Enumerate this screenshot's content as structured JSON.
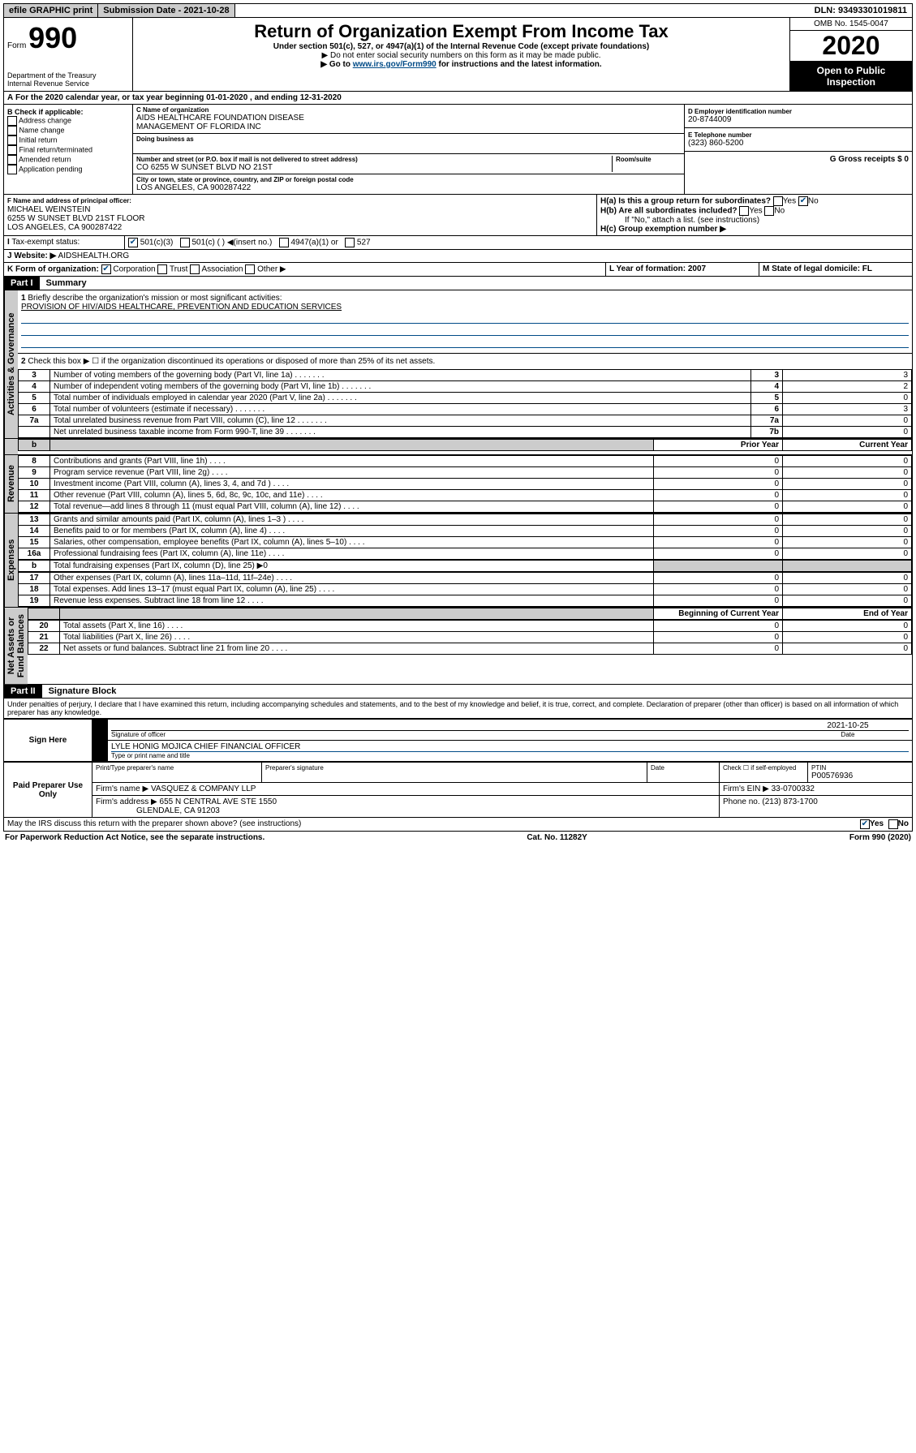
{
  "top": {
    "efile": "efile GRAPHIC print",
    "sub_label": "Submission Date - 2021-10-28",
    "dln": "DLN: 93493301019811"
  },
  "header": {
    "form_word": "Form",
    "form_num": "990",
    "dept": "Department of the Treasury\nInternal Revenue Service",
    "title": "Return of Organization Exempt From Income Tax",
    "sub1": "Under section 501(c), 527, or 4947(a)(1) of the Internal Revenue Code (except private foundations)",
    "sub2": "▶ Do not enter social security numbers on this form as it may be made public.",
    "sub3_pre": "▶ Go to ",
    "sub3_link": "www.irs.gov/Form990",
    "sub3_post": " for instructions and the latest information.",
    "omb": "OMB No. 1545-0047",
    "year": "2020",
    "insp1": "Open to Public",
    "insp2": "Inspection"
  },
  "a": {
    "text": "For the 2020 calendar year, or tax year beginning 01-01-2020    , and ending 12-31-2020"
  },
  "b": {
    "title": "B Check if applicable:",
    "opts": [
      "Address change",
      "Name change",
      "Initial return",
      "Final return/terminated",
      "Amended return",
      "Application pending"
    ]
  },
  "c": {
    "label": "C Name of organization",
    "name": "AIDS HEALTHCARE FOUNDATION DISEASE\nMANAGEMENT OF FLORIDA INC",
    "dba_label": "Doing business as",
    "addr_label": "Number and street (or P.O. box if mail is not delivered to street address)",
    "room": "Room/suite",
    "addr": "CO 6255 W SUNSET BLVD NO 21ST",
    "city_label": "City or town, state or province, country, and ZIP or foreign postal code",
    "city": "LOS ANGELES, CA  900287422"
  },
  "d": {
    "label": "D Employer identification number",
    "val": "20-8744009"
  },
  "e": {
    "label": "E Telephone number",
    "val": "(323) 860-5200"
  },
  "g": {
    "label": "G Gross receipts $ 0"
  },
  "f": {
    "label": "F  Name and address of principal officer:",
    "name": "MICHAEL WEINSTEIN",
    "addr1": "6255 W SUNSET BLVD 21ST FLOOR",
    "addr2": "LOS ANGELES, CA  900287422"
  },
  "h": {
    "a": "H(a)  Is this a group return for subordinates?",
    "b": "H(b)  Are all subordinates included?",
    "note": "If \"No,\" attach a list. (see instructions)",
    "c": "H(c)  Group exemption number ▶"
  },
  "i": {
    "label": "Tax-exempt status:",
    "o1": "501(c)(3)",
    "o2": "501(c) (  ) ◀(insert no.)",
    "o3": "4947(a)(1) or",
    "o4": "527"
  },
  "j": {
    "label": "Website: ▶",
    "val": "AIDSHEALTH.ORG"
  },
  "k": {
    "label": "K Form of organization:",
    "o1": "Corporation",
    "o2": "Trust",
    "o3": "Association",
    "o4": "Other ▶"
  },
  "l": {
    "label": "L Year of formation: 2007"
  },
  "m": {
    "label": "M State of legal domicile: FL"
  },
  "parts": {
    "p1": "Part I",
    "p1t": "Summary",
    "p2": "Part II",
    "p2t": "Signature Block"
  },
  "vtabs": {
    "gov": "Activities & Governance",
    "rev": "Revenue",
    "exp": "Expenses",
    "net": "Net Assets or\nFund Balances"
  },
  "summary": {
    "l1": "Briefly describe the organization's mission or most significant activities:",
    "l1v": "PROVISION OF HIV/AIDS HEALTHCARE, PREVENTION AND EDUCATION SERVICES",
    "l2": "Check this box ▶ ☐  if the organization discontinued its operations or disposed of more than 25% of its net assets.",
    "lines": [
      {
        "n": "3",
        "d": "Number of voting members of the governing body (Part VI, line 1a)",
        "r": "3",
        "v": "3"
      },
      {
        "n": "4",
        "d": "Number of independent voting members of the governing body (Part VI, line 1b)",
        "r": "4",
        "v": "2"
      },
      {
        "n": "5",
        "d": "Total number of individuals employed in calendar year 2020 (Part V, line 2a)",
        "r": "5",
        "v": "0"
      },
      {
        "n": "6",
        "d": "Total number of volunteers (estimate if necessary)",
        "r": "6",
        "v": "3"
      },
      {
        "n": "7a",
        "d": "Total unrelated business revenue from Part VIII, column (C), line 12",
        "r": "7a",
        "v": "0"
      },
      {
        "n": "",
        "d": "Net unrelated business taxable income from Form 990-T, line 39",
        "r": "7b",
        "v": "0"
      }
    ],
    "col_prior": "Prior Year",
    "col_curr": "Current Year",
    "rev": [
      {
        "n": "8",
        "d": "Contributions and grants (Part VIII, line 1h)",
        "p": "0",
        "c": "0"
      },
      {
        "n": "9",
        "d": "Program service revenue (Part VIII, line 2g)",
        "p": "0",
        "c": "0"
      },
      {
        "n": "10",
        "d": "Investment income (Part VIII, column (A), lines 3, 4, and 7d )",
        "p": "0",
        "c": "0"
      },
      {
        "n": "11",
        "d": "Other revenue (Part VIII, column (A), lines 5, 6d, 8c, 9c, 10c, and 11e)",
        "p": "0",
        "c": "0"
      },
      {
        "n": "12",
        "d": "Total revenue—add lines 8 through 11 (must equal Part VIII, column (A), line 12)",
        "p": "0",
        "c": "0"
      }
    ],
    "exp": [
      {
        "n": "13",
        "d": "Grants and similar amounts paid (Part IX, column (A), lines 1–3 )",
        "p": "0",
        "c": "0"
      },
      {
        "n": "14",
        "d": "Benefits paid to or for members (Part IX, column (A), line 4)",
        "p": "0",
        "c": "0"
      },
      {
        "n": "15",
        "d": "Salaries, other compensation, employee benefits (Part IX, column (A), lines 5–10)",
        "p": "0",
        "c": "0"
      },
      {
        "n": "16a",
        "d": "Professional fundraising fees (Part IX, column (A), line 11e)",
        "p": "0",
        "c": "0"
      }
    ],
    "l16b": "Total fundraising expenses (Part IX, column (D), line 25) ▶0",
    "exp2": [
      {
        "n": "17",
        "d": "Other expenses (Part IX, column (A), lines 11a–11d, 11f–24e)",
        "p": "0",
        "c": "0"
      },
      {
        "n": "18",
        "d": "Total expenses. Add lines 13–17 (must equal Part IX, column (A), line 25)",
        "p": "0",
        "c": "0"
      },
      {
        "n": "19",
        "d": "Revenue less expenses. Subtract line 18 from line 12",
        "p": "0",
        "c": "0"
      }
    ],
    "col_beg": "Beginning of Current Year",
    "col_end": "End of Year",
    "net": [
      {
        "n": "20",
        "d": "Total assets (Part X, line 16)",
        "p": "0",
        "c": "0"
      },
      {
        "n": "21",
        "d": "Total liabilities (Part X, line 26)",
        "p": "0",
        "c": "0"
      },
      {
        "n": "22",
        "d": "Net assets or fund balances. Subtract line 21 from line 20",
        "p": "0",
        "c": "0"
      }
    ]
  },
  "sig": {
    "perjury": "Under penalties of perjury, I declare that I have examined this return, including accompanying schedules and statements, and to the best of my knowledge and belief, it is true, correct, and complete. Declaration of preparer (other than officer) is based on all information of which preparer has any knowledge.",
    "sign_here": "Sign Here",
    "date": "2021-10-25",
    "sig_of": "Signature of officer",
    "date_l": "Date",
    "officer": "LYLE HONIG MOJICA  CHIEF FINANCIAL OFFICER",
    "type_name": "Type or print name and title",
    "paid": "Paid Preparer Use Only",
    "prep_name_l": "Print/Type preparer's name",
    "prep_sig_l": "Preparer's signature",
    "check_l": "Check ☐ if self-employed",
    "ptin_l": "PTIN",
    "ptin": "P00576936",
    "firm_name_l": "Firm's name      ▶",
    "firm_name": "VASQUEZ & COMPANY LLP",
    "firm_ein_l": "Firm's EIN ▶",
    "firm_ein": "33-0700332",
    "firm_addr_l": "Firm's address ▶",
    "firm_addr1": "655 N CENTRAL AVE STE 1550",
    "firm_addr2": "GLENDALE, CA  91203",
    "phone_l": "Phone no.",
    "phone": "(213) 873-1700",
    "discuss": "May the IRS discuss this return with the preparer shown above? (see instructions)"
  },
  "footer": {
    "pra": "For Paperwork Reduction Act Notice, see the separate instructions.",
    "cat": "Cat. No. 11282Y",
    "form": "Form 990 (2020)"
  }
}
